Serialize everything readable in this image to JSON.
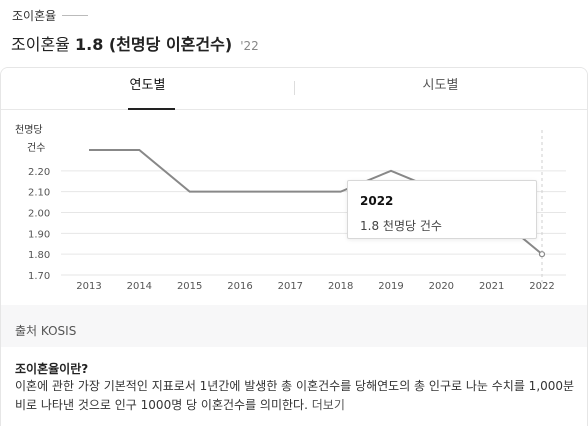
{
  "header": {
    "label": "조이혼율",
    "headline_prefix": "조이혼율",
    "headline_value": "1.8 (천명당 이혼건수)",
    "headline_year": "'22"
  },
  "tabs": [
    {
      "label": "연도별",
      "active": true
    },
    {
      "label": "시도별",
      "active": false
    }
  ],
  "chart_data": {
    "type": "line",
    "ylabel": "천명당 건수",
    "ylim": [
      1.7,
      2.3
    ],
    "yticks": [
      "1.70",
      "1.80",
      "1.90",
      "2.00",
      "2.10",
      "2.20"
    ],
    "categories": [
      "2013",
      "2014",
      "2015",
      "2016",
      "2017",
      "2018",
      "2019",
      "2020",
      "2021",
      "2022"
    ],
    "values": [
      2.3,
      2.3,
      2.1,
      2.1,
      2.1,
      2.1,
      2.2,
      2.1,
      2.0,
      1.8
    ],
    "grid": true,
    "highlight_index": 9,
    "colors": {
      "line": "#888888",
      "grid": "#e6e6e6",
      "axis_text": "#555555"
    }
  },
  "tooltip": {
    "year": "2022",
    "value_text": "1.8 천명당 건수"
  },
  "source": "출처 KOSIS",
  "description": {
    "title": "조이혼율이란?",
    "body": "이혼에 관한 가장 기본적인 지표로서 1년간에 발생한 총 이혼건수를 당해연도의 총 인구로 나눈 수치를 1,000분비로 나타낸 것으로 인구 1000명 당 이혼건수를 의미한다.",
    "more": "더보기"
  }
}
